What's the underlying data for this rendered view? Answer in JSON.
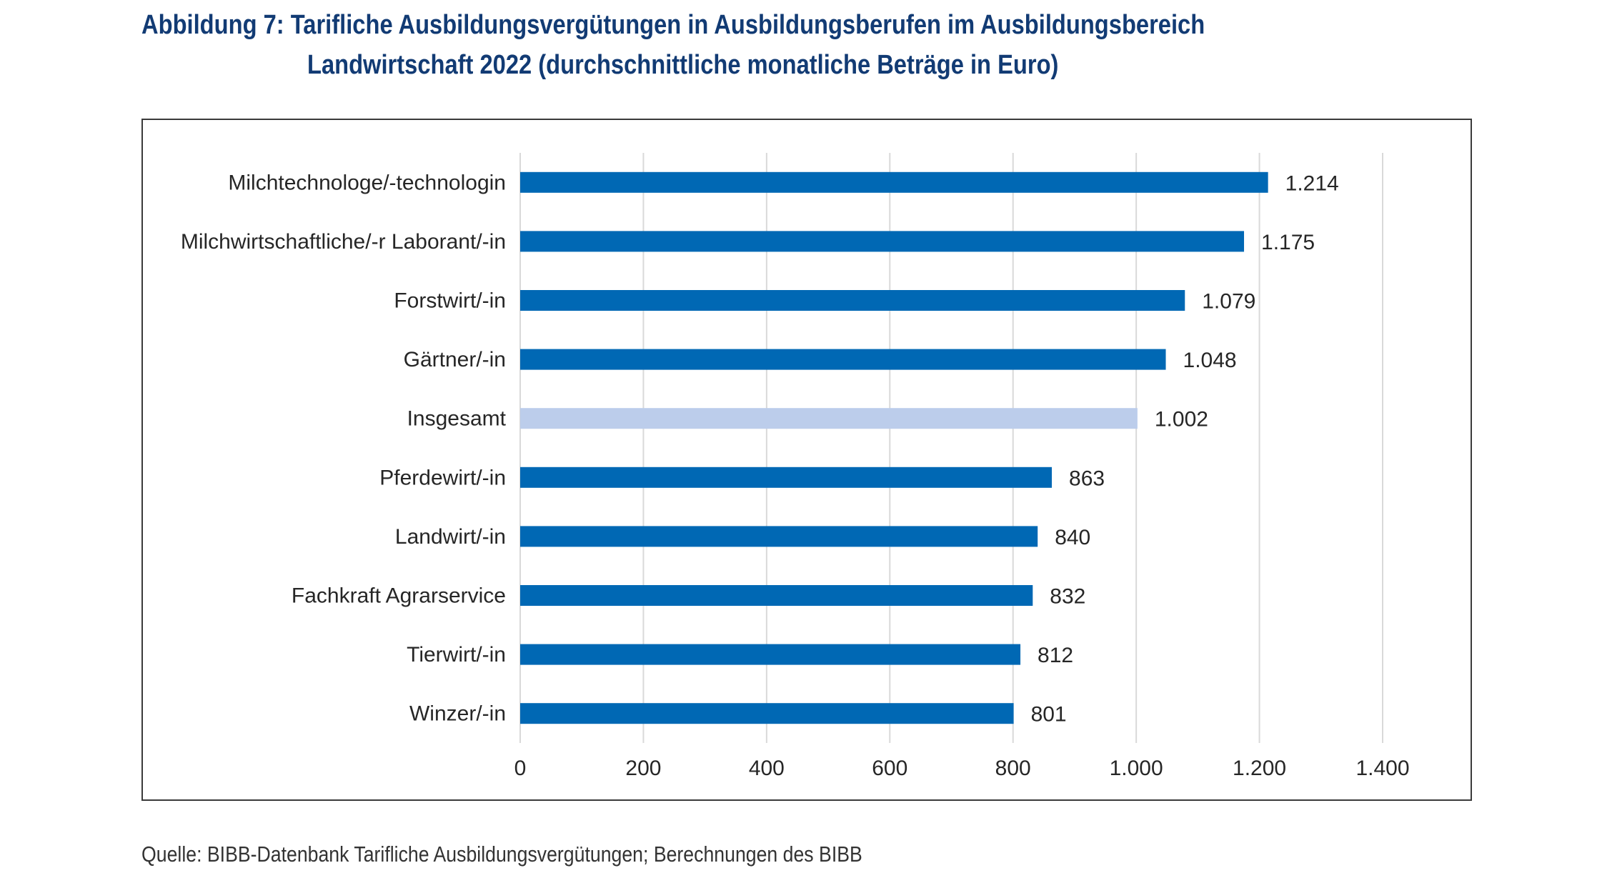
{
  "title_line1": "Abbildung 7: Tarifliche Ausbildungsvergütungen in Ausbildungsberufen im Ausbildungsbereich",
  "title_line2": "Landwirtschaft 2022 (durchschnittliche monatliche Beträge in Euro)",
  "source": "Quelle: BIBB-Datenbank Tarifliche Ausbildungsvergütungen; Berechnungen des BIBB",
  "colors": {
    "bar": "#0068b4",
    "highlight": "#bccdeb",
    "grid": "#d9d9d9",
    "title": "#123b74",
    "text": "#262626"
  },
  "chart_data": {
    "type": "bar",
    "orientation": "horizontal",
    "title": "Abbildung 7: Tarifliche Ausbildungsvergütungen in Ausbildungsberufen im Ausbildungsbereich Landwirtschaft 2022 (durchschnittliche monatliche Beträge in Euro)",
    "xlabel": "",
    "ylabel": "",
    "categories": [
      "Milchtechnologe/-technologin",
      "Milchwirtschaftliche/-r Laborant/-in",
      "Forstwirt/-in",
      "Gärtner/-in",
      "Insgesamt",
      "Pferdewirt/-in",
      "Landwirt/-in",
      "Fachkraft Agrarservice",
      "Tierwirt/-in",
      "Winzer/-in"
    ],
    "values": [
      1214,
      1175,
      1079,
      1048,
      1002,
      863,
      840,
      832,
      812,
      801
    ],
    "value_labels": [
      "1.214",
      "1.175",
      "1.079",
      "1.048",
      "1.002",
      "863",
      "840",
      "832",
      "812",
      "801"
    ],
    "highlight": "Insgesamt",
    "xlim": [
      0,
      1400
    ],
    "xticks": [
      0,
      200,
      400,
      600,
      800,
      1000,
      1200,
      1400
    ],
    "xtick_labels": [
      "0",
      "200",
      "400",
      "600",
      "800",
      "1.000",
      "1.200",
      "1.400"
    ],
    "grid": true,
    "legend": "none"
  }
}
